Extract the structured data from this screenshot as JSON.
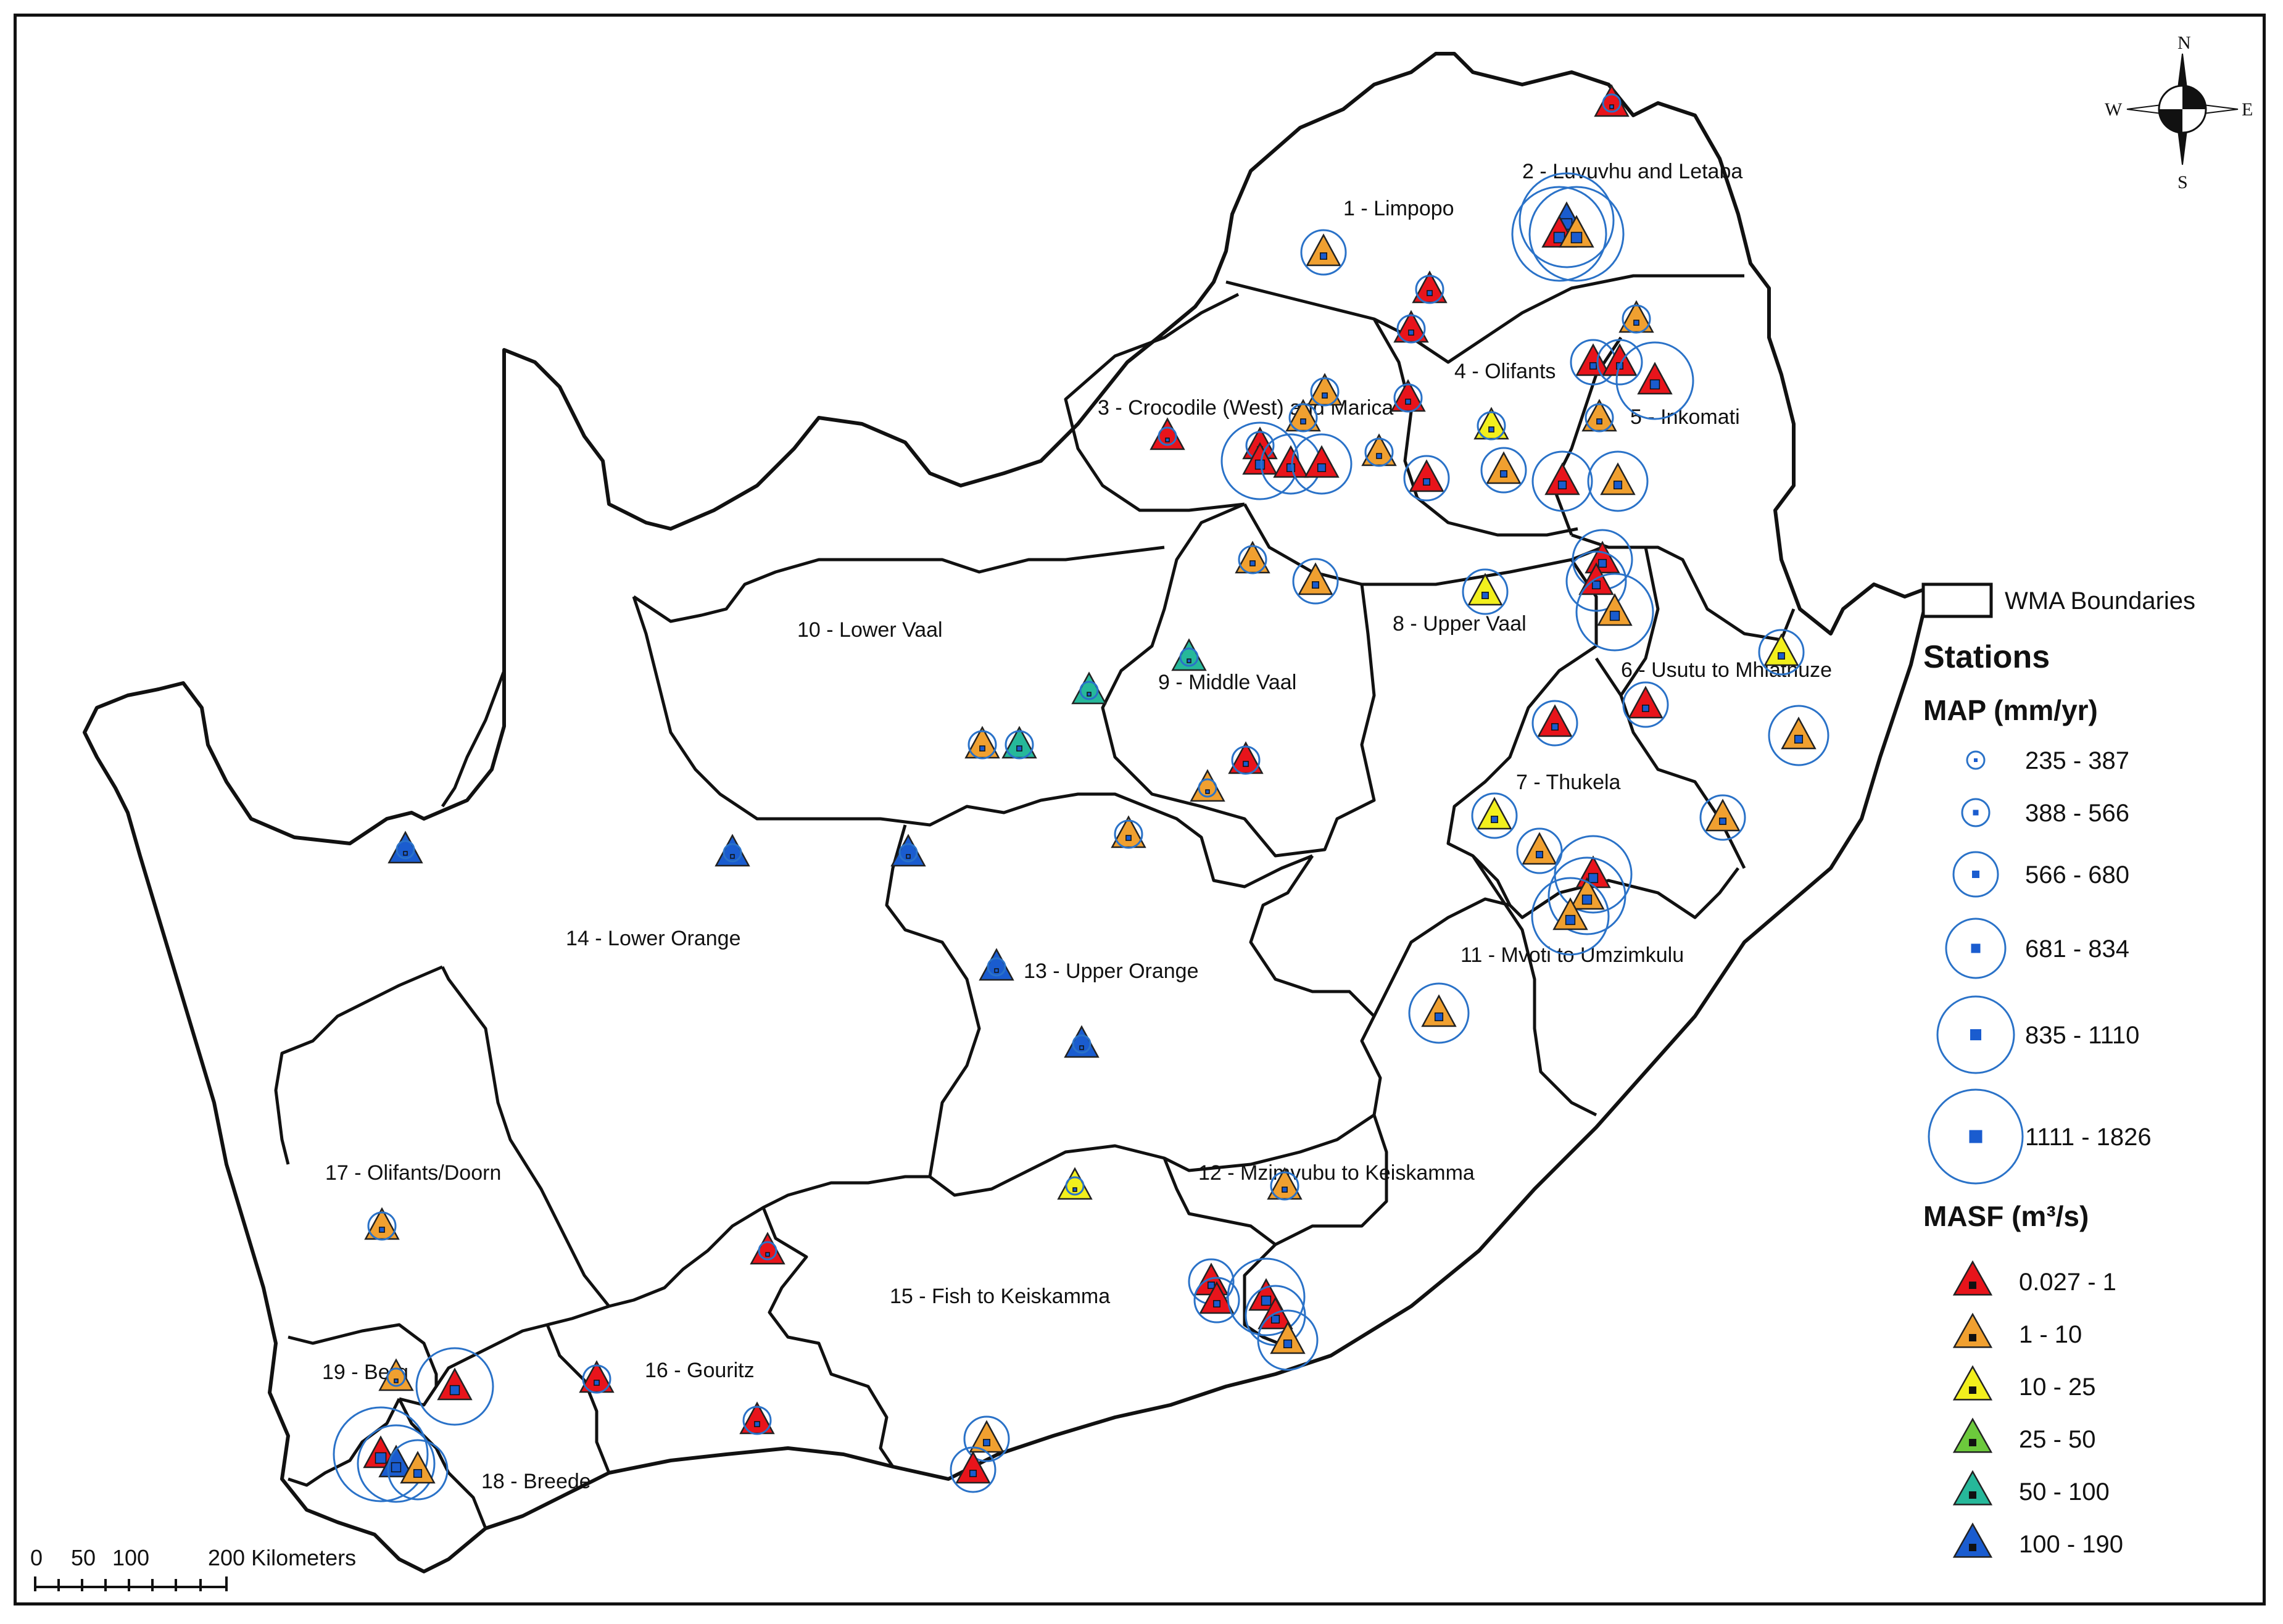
{
  "compass": {
    "n": "N",
    "s": "S",
    "e": "E",
    "w": "W"
  },
  "scale": {
    "t0": "0",
    "t1": "50",
    "t2": "100",
    "t3": "200 Kilometers"
  },
  "wma_labels": [
    "1 - Limpopo",
    "2 - Luvuvhu and Letaba",
    "3 - Crocodile (West) and Marica",
    "4 - Olifants",
    "5 - Inkomati",
    "6 - Usutu to Mhlathuze",
    "7 - Thukela",
    "8 - Upper Vaal",
    "9 - Middle Vaal",
    "10 - Lower Vaal",
    "11 - Mvoti to Umzimkulu",
    "12 - Mzimvubu to Keiskamma",
    "13 - Upper Orange",
    "14 - Lower Orange",
    "15 - Fish to Keiskamma",
    "16 - Gouritz",
    "17 - Olifants/Doorn",
    "18 - Breede",
    "19 - Berg"
  ],
  "legend": {
    "boundary_label": "WMA Boundaries",
    "stations_title": "Stations",
    "map_title": "MAP (mm/yr)",
    "map_classes": [
      "235 - 387",
      "388 - 566",
      "566 - 680",
      "681 - 834",
      "835 - 1110",
      "1111 - 1826"
    ],
    "masf_title": "MASF (m³/s)",
    "masf_classes": [
      {
        "label": "0.027 - 1",
        "color": "#e8141b"
      },
      {
        "label": "1 - 10",
        "color": "#f0a030"
      },
      {
        "label": "10 - 25",
        "color": "#f2ef1d"
      },
      {
        "label": "25 - 50",
        "color": "#6cc93c"
      },
      {
        "label": "50 - 100",
        "color": "#26b89a"
      },
      {
        "label": "100 - 190",
        "color": "#1a5ccf"
      }
    ]
  },
  "stations": [
    {
      "masf": 0,
      "map": 0,
      "wma": "2"
    },
    {
      "masf": 1,
      "map": 2,
      "wma": "1"
    },
    {
      "masf": 5,
      "map": 5,
      "wma": "2"
    },
    {
      "masf": 0,
      "map": 5,
      "wma": "2"
    },
    {
      "masf": 1,
      "map": 5,
      "wma": "2"
    },
    {
      "masf": 0,
      "map": 1,
      "wma": "4"
    },
    {
      "masf": 0,
      "map": 1,
      "wma": "4"
    },
    {
      "masf": 1,
      "map": 1,
      "wma": "5"
    },
    {
      "masf": 1,
      "map": 1,
      "wma": "3"
    },
    {
      "masf": 0,
      "map": 1,
      "wma": "4"
    },
    {
      "masf": 0,
      "map": 2,
      "wma": "4"
    },
    {
      "masf": 0,
      "map": 2,
      "wma": "4"
    },
    {
      "masf": 0,
      "map": 4,
      "wma": "5"
    },
    {
      "masf": 0,
      "map": 1,
      "wma": "3"
    },
    {
      "masf": 1,
      "map": 1,
      "wma": "3"
    },
    {
      "masf": 0,
      "map": 4,
      "wma": "3"
    },
    {
      "masf": 0,
      "map": 3,
      "wma": "3"
    },
    {
      "masf": 0,
      "map": 3,
      "wma": "3"
    },
    {
      "masf": 1,
      "map": 1,
      "wma": "4"
    },
    {
      "masf": 2,
      "map": 1,
      "wma": "4"
    },
    {
      "masf": 1,
      "map": 1,
      "wma": "5"
    },
    {
      "masf": 1,
      "map": 2,
      "wma": "4"
    },
    {
      "masf": 0,
      "map": 2,
      "wma": "4"
    },
    {
      "masf": 0,
      "map": 3,
      "wma": "5"
    },
    {
      "masf": 1,
      "map": 3,
      "wma": "5"
    },
    {
      "masf": 0,
      "map": 3,
      "wma": "5"
    },
    {
      "masf": 0,
      "map": 3,
      "wma": "6"
    },
    {
      "masf": 1,
      "map": 4,
      "wma": "6"
    },
    {
      "masf": 1,
      "map": 1,
      "wma": "8"
    },
    {
      "masf": 1,
      "map": 2,
      "wma": "8"
    },
    {
      "masf": 2,
      "map": 2,
      "wma": "8"
    },
    {
      "masf": 4,
      "map": 0,
      "wma": "9"
    },
    {
      "masf": 4,
      "map": 0,
      "wma": "9"
    },
    {
      "masf": 1,
      "map": 1,
      "wma": "10"
    },
    {
      "masf": 4,
      "map": 1,
      "wma": "10"
    },
    {
      "masf": 0,
      "map": 1,
      "wma": "9"
    },
    {
      "masf": 1,
      "map": 0,
      "wma": "9"
    },
    {
      "masf": 1,
      "map": 1,
      "wma": "13"
    },
    {
      "masf": 5,
      "map": 0,
      "wma": "14"
    },
    {
      "masf": 5,
      "map": 0,
      "wma": "14"
    },
    {
      "masf": 5,
      "map": 0,
      "wma": "13"
    },
    {
      "masf": 5,
      "map": 0,
      "wma": "13"
    },
    {
      "masf": 5,
      "map": 0,
      "wma": "13"
    },
    {
      "masf": 2,
      "map": 2,
      "wma": "6"
    },
    {
      "masf": 0,
      "map": 2,
      "wma": "6"
    },
    {
      "masf": 1,
      "map": 3,
      "wma": "6"
    },
    {
      "masf": 0,
      "map": 2,
      "wma": "7"
    },
    {
      "masf": 2,
      "map": 2,
      "wma": "7"
    },
    {
      "masf": 1,
      "map": 2,
      "wma": "7"
    },
    {
      "masf": 1,
      "map": 2,
      "wma": "6"
    },
    {
      "masf": 0,
      "map": 4,
      "wma": "7"
    },
    {
      "masf": 1,
      "map": 4,
      "wma": "11"
    },
    {
      "masf": 1,
      "map": 4,
      "wma": "11"
    },
    {
      "masf": 1,
      "map": 3,
      "wma": "11"
    },
    {
      "masf": 1,
      "map": 1,
      "wma": "12"
    },
    {
      "masf": 2,
      "map": 0,
      "wma": "15"
    },
    {
      "masf": 0,
      "map": 2,
      "wma": "12"
    },
    {
      "masf": 0,
      "map": 2,
      "wma": "12"
    },
    {
      "masf": 0,
      "map": 4,
      "wma": "12"
    },
    {
      "masf": 0,
      "map": 3,
      "wma": "12"
    },
    {
      "masf": 1,
      "map": 3,
      "wma": "12"
    },
    {
      "masf": 0,
      "map": 1,
      "wma": "16"
    },
    {
      "masf": 0,
      "map": 1,
      "wma": "16"
    },
    {
      "masf": 0,
      "map": 0,
      "wma": "16"
    },
    {
      "masf": 1,
      "map": 2,
      "wma": "15"
    },
    {
      "masf": 0,
      "map": 2,
      "wma": "15"
    },
    {
      "masf": 1,
      "map": 1,
      "wma": "17"
    },
    {
      "masf": 1,
      "map": 0,
      "wma": "19"
    },
    {
      "masf": 0,
      "map": 4,
      "wma": "19"
    },
    {
      "masf": 0,
      "map": 5,
      "wma": "18"
    },
    {
      "masf": 5,
      "map": 4,
      "wma": "18"
    },
    {
      "masf": 1,
      "map": 3,
      "wma": "18"
    },
    {
      "masf": 0,
      "map": 0,
      "wma": "3"
    }
  ]
}
